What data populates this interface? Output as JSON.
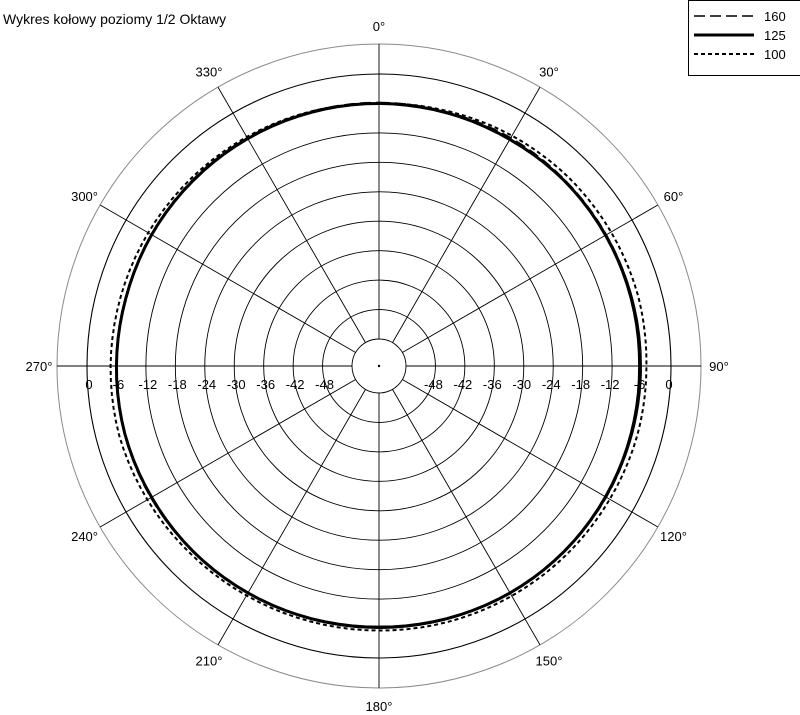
{
  "chart_data": {
    "type": "polar-line",
    "title": "Wykres kołowy poziomy 1/2 Oktawy",
    "angle_unit": "degree",
    "angle_ticks": [
      0,
      30,
      60,
      90,
      120,
      150,
      180,
      210,
      240,
      270,
      300,
      330
    ],
    "angle_labels": [
      "0°",
      "30°",
      "60°",
      "90°",
      "120°",
      "150°",
      "180°",
      "210°",
      "240°",
      "270°",
      "300°",
      "330°"
    ],
    "r_range": [
      -54,
      0
    ],
    "r_unit": "dB",
    "r_rings": [
      -48,
      -42,
      -36,
      -30,
      -24,
      -18,
      -12,
      -6,
      0
    ],
    "r_labels_left": [
      "0",
      "-6",
      "-12",
      "-18",
      "-24",
      "-30",
      "-36",
      "-42",
      "-48"
    ],
    "r_labels_right": [
      "-48",
      "-42",
      "-36",
      "-30",
      "-24",
      "-18",
      "-12",
      "-6",
      "0"
    ],
    "grid": true,
    "legend_position": "top-right",
    "angles": [
      0,
      15,
      30,
      45,
      60,
      75,
      90,
      105,
      120,
      135,
      150,
      165,
      180,
      195,
      210,
      225,
      240,
      255,
      270,
      285,
      300,
      315,
      330,
      345
    ],
    "series": [
      {
        "name": "160",
        "style": "long-dash",
        "values": [
          -5.8,
          -5.9,
          -5.8,
          -5.9,
          -6.0,
          -6.1,
          -6.2,
          -6.1,
          -6.0,
          -6.0,
          -6.0,
          -6.1,
          -6.2,
          -6.1,
          -6.0,
          -5.9,
          -5.8,
          -5.8,
          -5.9,
          -6.0,
          -5.9,
          -5.8,
          -5.8,
          -5.8
        ]
      },
      {
        "name": "125",
        "style": "solid-bold",
        "values": [
          -6.0,
          -6.1,
          -6.2,
          -6.1,
          -6.2,
          -6.3,
          -6.4,
          -6.3,
          -6.2,
          -6.1,
          -6.1,
          -6.2,
          -6.3,
          -6.2,
          -6.1,
          -6.0,
          -6.0,
          -5.9,
          -6.0,
          -6.1,
          -6.0,
          -6.0,
          -6.0,
          -6.0
        ]
      },
      {
        "name": "100",
        "style": "short-dash",
        "values": [
          -6.0,
          -5.7,
          -5.3,
          -5.0,
          -4.9,
          -4.8,
          -5.0,
          -5.0,
          -5.2,
          -5.3,
          -5.4,
          -5.5,
          -5.6,
          -5.6,
          -5.5,
          -5.3,
          -5.0,
          -4.7,
          -4.8,
          -5.0,
          -5.2,
          -5.4,
          -5.6,
          -5.8
        ]
      }
    ]
  }
}
